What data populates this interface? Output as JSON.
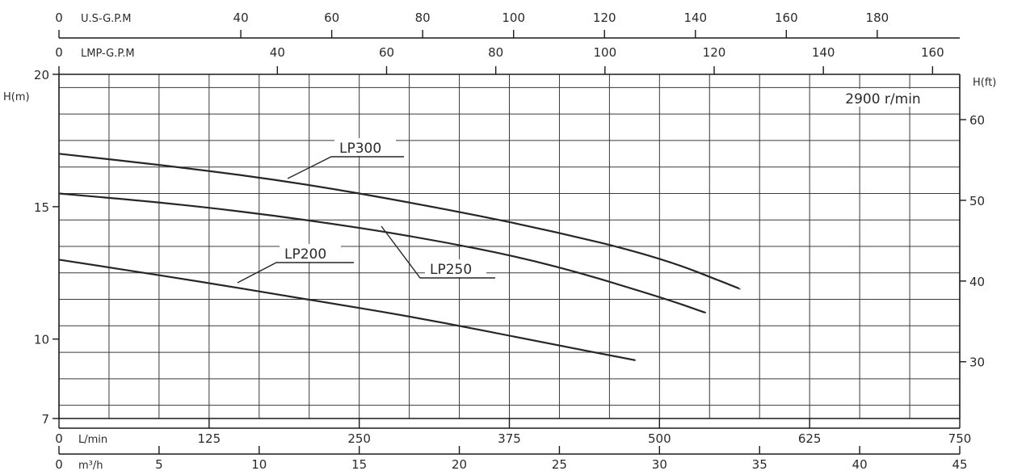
{
  "chart_data": {
    "type": "line",
    "title": "",
    "annotation": "2900 r/min",
    "y_label_left": "H(m)",
    "y_label_right": "H(ft)",
    "top_axis_1_label": "U.S-G.P.M",
    "top_axis_2_label": "LMP-G.P.M",
    "bottom_axis_1_label": "L/min",
    "bottom_axis_2_label": "m³/h",
    "xlim": [
      0,
      750
    ],
    "ylim": [
      7,
      20
    ],
    "grid": true,
    "y_ticks_left": [
      "20",
      "15",
      "10",
      "7"
    ],
    "y_ticks_right": [
      "60",
      "50",
      "40",
      "30"
    ],
    "top_axis_1_ticks": [
      "0",
      "40",
      "60",
      "80",
      "100",
      "120",
      "140",
      "160",
      "180"
    ],
    "top_axis_2_ticks": [
      "0",
      "40",
      "60",
      "80",
      "100",
      "120",
      "140",
      "160"
    ],
    "bottom_axis_1_ticks": [
      "0",
      "125",
      "250",
      "375",
      "500",
      "625",
      "750"
    ],
    "bottom_axis_2_ticks": [
      "0",
      "5",
      "10",
      "15",
      "20",
      "25",
      "30",
      "35",
      "40",
      "45"
    ],
    "series": [
      {
        "name": "LP300",
        "x": [
          0,
          100,
          200,
          300,
          400,
          500,
          567
        ],
        "y": [
          17.0,
          16.5,
          15.9,
          15.1,
          14.2,
          13.1,
          11.9
        ]
      },
      {
        "name": "LP250",
        "x": [
          0,
          100,
          200,
          300,
          400,
          500,
          538
        ],
        "y": [
          15.5,
          15.1,
          14.55,
          13.85,
          12.95,
          11.6,
          11.0
        ]
      },
      {
        "name": "LP200",
        "x": [
          0,
          100,
          200,
          300,
          400,
          480
        ],
        "y": [
          13.0,
          12.3,
          11.55,
          10.8,
          9.9,
          9.2
        ]
      }
    ]
  }
}
